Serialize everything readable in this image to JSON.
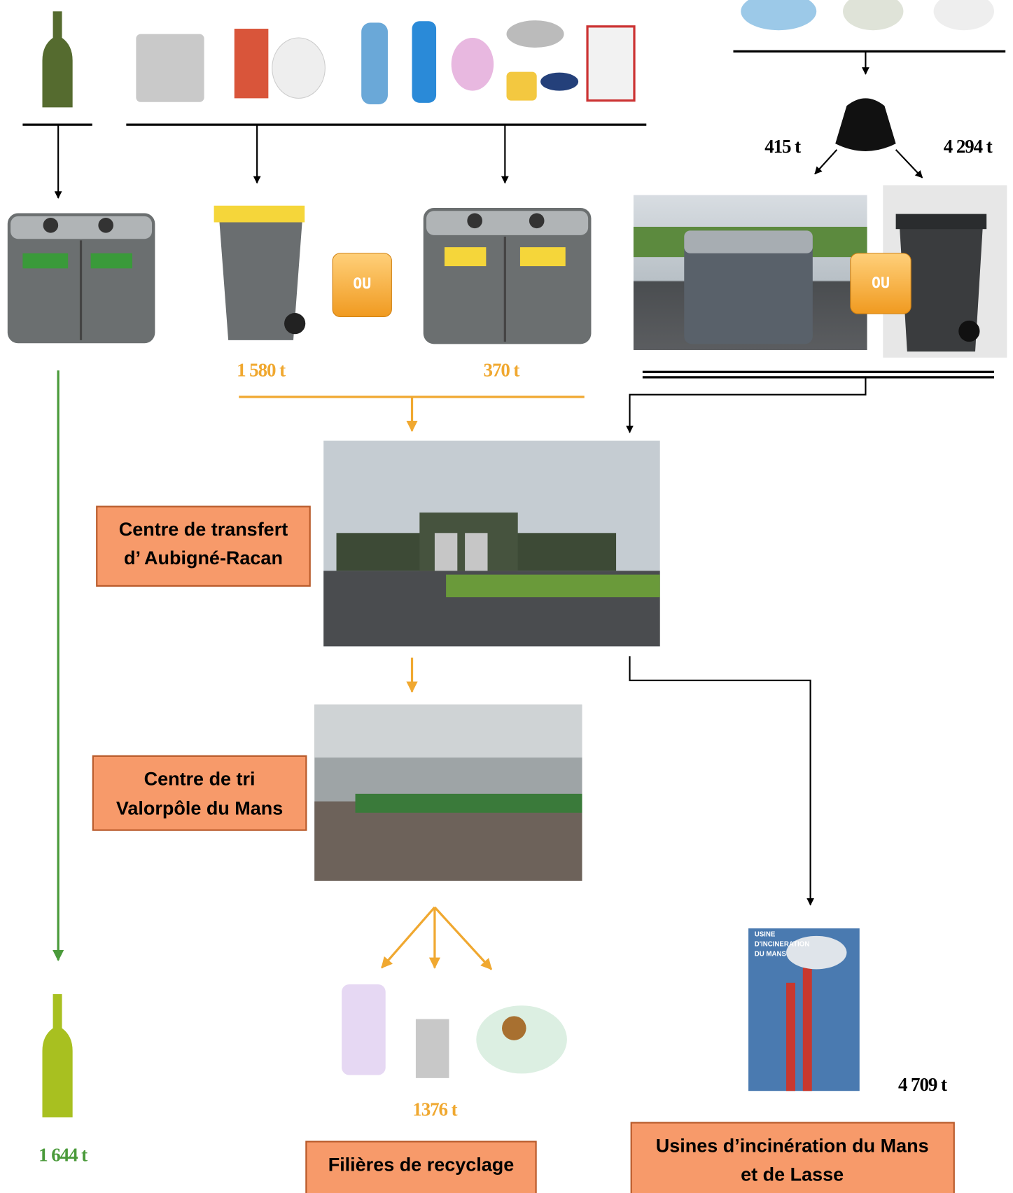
{
  "flows": {
    "residual_container": "415 t",
    "residual_bin": "4 294 t",
    "packaging_bin": "1 580 t",
    "packaging_container": "370 t",
    "recycled": "1376 t",
    "incinerated": "4 709 t",
    "glass": "1 644 t"
  },
  "or_labels": [
    "OU",
    "OU"
  ],
  "poster": [
    "USINE",
    "D'INCINERATION",
    "DU MANS"
  ],
  "facilities": {
    "transfer": [
      "Centre de transfert",
      "d’ Aubigné-Racan"
    ],
    "sorting": [
      "Centre de tri",
      "Valorpôle du Mans"
    ],
    "recycling": [
      "Filières de recyclage"
    ],
    "incineration": [
      "Usines d’incinération du Mans",
      "et de Lasse"
    ]
  }
}
